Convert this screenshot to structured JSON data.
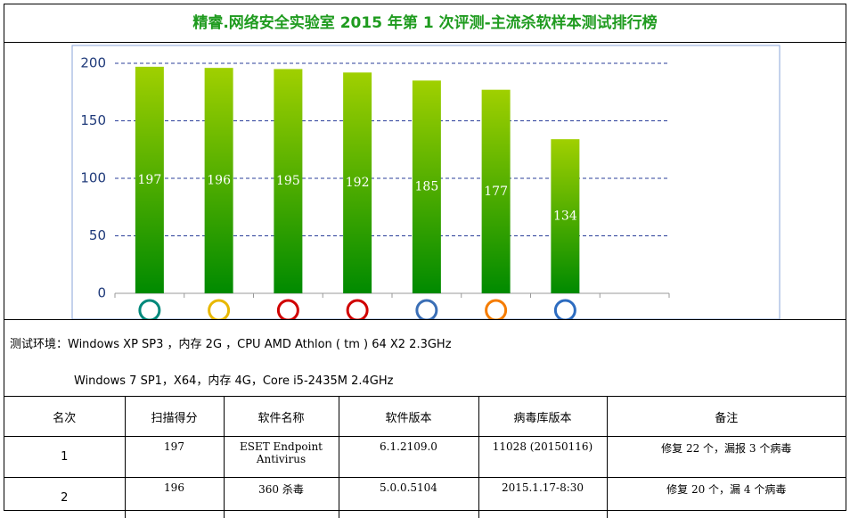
{
  "header": {
    "title": "精睿.网络安全实验室  2015 年第 1 次评测-主流杀软样本测试排行榜"
  },
  "chart_data": {
    "type": "bar",
    "categories": [
      null,
      null,
      null,
      null,
      null,
      null,
      null
    ],
    "values": [
      197,
      196,
      195,
      192,
      185,
      177,
      134
    ],
    "ylim": [
      0,
      200
    ],
    "yticks": [
      0,
      50,
      100,
      150,
      200
    ],
    "grid": true
  },
  "environment": [
    "测试环境：Windows XP SP3 ，内存 2G ，CPU AMD Athlon ( tm ) 64 X2 2.3GHz",
    "Windows 7 SP1，X64，内存 4G，Core i5-2435M 2.4GHz"
  ],
  "table": {
    "columns": [
      "名次",
      "扫描得分",
      "软件名称",
      "软件版本",
      "病毒库版本",
      "备注"
    ],
    "rows": [
      [
        "1",
        "197",
        "ESET Endpoint Antivirus",
        "6.1.2109.0",
        "11028 (20150116)",
        "修复 22 个，漏报 3 个病毒"
      ],
      [
        "2",
        "196",
        "360 杀毒",
        "5.0.0.5104",
        "2015.1.17-8:30",
        "修复 20 个，漏 4 个病毒"
      ]
    ]
  }
}
